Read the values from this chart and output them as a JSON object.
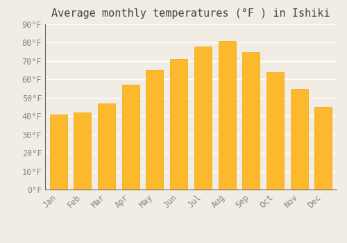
{
  "title": "Average monthly temperatures (°F ) in Ishiki",
  "months": [
    "Jan",
    "Feb",
    "Mar",
    "Apr",
    "May",
    "Jun",
    "Jul",
    "Aug",
    "Sep",
    "Oct",
    "Nov",
    "Dec"
  ],
  "values": [
    41,
    42,
    47,
    57,
    65,
    71,
    78,
    81,
    75,
    64,
    55,
    45
  ],
  "bar_color_face": "#FDB92E",
  "bar_color_edge": "#F0A800",
  "background_color": "#F2EDE4",
  "grid_color": "#FFFFFF",
  "ylim": [
    0,
    90
  ],
  "yticks": [
    0,
    10,
    20,
    30,
    40,
    50,
    60,
    70,
    80,
    90
  ],
  "title_fontsize": 11,
  "tick_fontsize": 8.5,
  "tick_font_color": "#888888",
  "title_color": "#444444"
}
